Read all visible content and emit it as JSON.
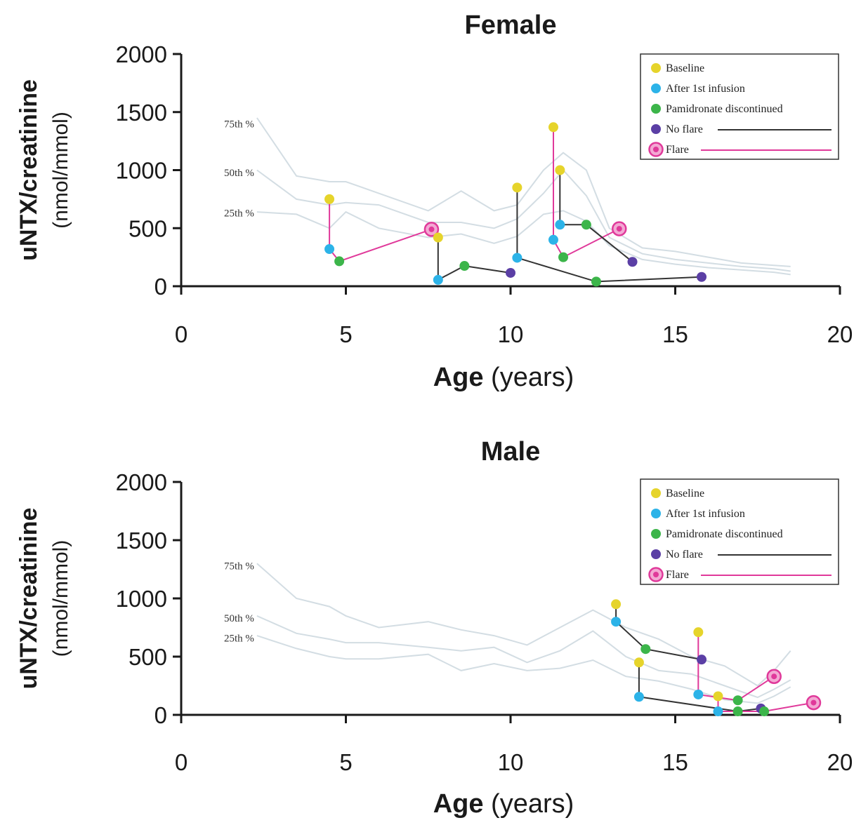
{
  "colors": {
    "baseline": "#e6d42b",
    "after_infusion": "#2cb3e8",
    "discontinued": "#3cb54a",
    "no_flare": "#5b3fa5",
    "flare": "#e0399a",
    "no_flare_line": "#333333",
    "flare_line": "#e0399a",
    "percentile": "#d3dde3",
    "axis": "#1a1a1a"
  },
  "chart_data": [
    {
      "type": "line",
      "title": "Female",
      "ylabel_bold": "uNTX/creatinine",
      "ylabel_units": "(nmol/mmol)",
      "xlabel_bold": "Age",
      "xlabel_units": "(years)",
      "xlim": [
        0,
        20
      ],
      "ylim": [
        0,
        2000
      ],
      "xticks": [
        "0",
        "5",
        "10",
        "15",
        "20"
      ],
      "yticks": [
        "0",
        "500",
        "1000",
        "1500",
        "2000"
      ],
      "legend_position": "top-right",
      "legend": [
        "Baseline",
        "After 1st infusion",
        "Pamidronate discontinued",
        "No flare",
        "Flare"
      ],
      "percentile_labels": [
        {
          "text": "75th %",
          "age": 2.3,
          "value": 1400
        },
        {
          "text": "50th %",
          "age": 2.3,
          "value": 980
        },
        {
          "text": "25th %",
          "age": 2.3,
          "value": 630
        }
      ],
      "percentiles": [
        {
          "name": "75th %",
          "x": [
            2.3,
            3.5,
            4.5,
            5.0,
            6.0,
            7.5,
            8.5,
            9.5,
            10.2,
            11.0,
            11.6,
            12.3,
            13.0,
            14.0,
            15.0,
            16.0,
            17.0,
            18.0,
            18.5
          ],
          "y": [
            1450,
            950,
            900,
            900,
            800,
            650,
            820,
            650,
            700,
            1000,
            1150,
            1000,
            500,
            330,
            300,
            250,
            200,
            180,
            170
          ]
        },
        {
          "name": "50th %",
          "x": [
            2.3,
            3.5,
            4.5,
            5.0,
            6.0,
            7.5,
            8.5,
            9.5,
            10.2,
            11.0,
            11.6,
            12.3,
            13.0,
            14.0,
            15.0,
            16.0,
            17.0,
            18.0,
            18.5
          ],
          "y": [
            1000,
            750,
            700,
            720,
            700,
            550,
            550,
            500,
            580,
            800,
            1000,
            780,
            420,
            280,
            230,
            200,
            170,
            150,
            130
          ]
        },
        {
          "name": "25th %",
          "x": [
            2.3,
            3.5,
            4.5,
            5.0,
            6.0,
            7.5,
            8.5,
            9.5,
            10.2,
            11.0,
            11.6,
            12.3,
            13.0,
            14.0,
            15.0,
            16.0,
            17.0,
            18.0,
            18.5
          ],
          "y": [
            640,
            620,
            500,
            640,
            500,
            420,
            450,
            370,
            430,
            620,
            650,
            560,
            350,
            230,
            190,
            160,
            140,
            120,
            100
          ]
        }
      ],
      "series": [
        {
          "flare": true,
          "x": [
            4.5,
            4.5,
            4.8,
            7.6
          ],
          "y": [
            750,
            320,
            215,
            490
          ],
          "kinds": [
            "baseline",
            "after",
            "discontinued",
            "flare"
          ]
        },
        {
          "flare": false,
          "x": [
            7.8,
            7.8,
            8.6,
            10.0
          ],
          "y": [
            420,
            55,
            175,
            115
          ],
          "kinds": [
            "baseline",
            "after",
            "discontinued",
            "noflare"
          ]
        },
        {
          "flare": false,
          "x": [
            10.2,
            10.2,
            12.6,
            15.8
          ],
          "y": [
            850,
            245,
            40,
            80
          ],
          "kinds": [
            "baseline",
            "after",
            "discontinued",
            "noflare"
          ]
        },
        {
          "flare": true,
          "x": [
            11.3,
            11.3,
            11.6,
            13.3
          ],
          "y": [
            1370,
            400,
            250,
            495
          ],
          "kinds": [
            "baseline",
            "after",
            "discontinued",
            "flare"
          ]
        },
        {
          "flare": false,
          "x": [
            11.5,
            11.5,
            12.3,
            13.7
          ],
          "y": [
            1000,
            530,
            530,
            210
          ],
          "kinds": [
            "baseline",
            "after",
            "discontinued",
            "noflare"
          ]
        }
      ]
    },
    {
      "type": "line",
      "title": "Male",
      "ylabel_bold": "uNTX/creatinine",
      "ylabel_units": "(nmol/mmol)",
      "xlabel_bold": "Age",
      "xlabel_units": "(years)",
      "xlim": [
        0,
        20
      ],
      "ylim": [
        0,
        2000
      ],
      "xticks": [
        "0",
        "5",
        "10",
        "15",
        "20"
      ],
      "yticks": [
        "0",
        "500",
        "1000",
        "1500",
        "2000"
      ],
      "legend_position": "top-right",
      "legend": [
        "Baseline",
        "After 1st infusion",
        "Pamidronate discontinued",
        "No flare",
        "Flare"
      ],
      "percentile_labels": [
        {
          "text": "75th %",
          "age": 2.3,
          "value": 1280
        },
        {
          "text": "50th %",
          "age": 2.3,
          "value": 830
        },
        {
          "text": "25th %",
          "age": 2.3,
          "value": 660
        }
      ],
      "percentiles": [
        {
          "name": "75th %",
          "x": [
            2.3,
            3.5,
            4.5,
            5.0,
            6.0,
            7.5,
            8.5,
            9.5,
            10.5,
            11.5,
            12.5,
            13.5,
            14.5,
            15.5,
            16.5,
            17.5,
            18.0,
            18.5
          ],
          "y": [
            1300,
            1000,
            930,
            850,
            750,
            800,
            730,
            680,
            600,
            750,
            900,
            750,
            650,
            500,
            420,
            250,
            380,
            550
          ]
        },
        {
          "name": "50th %",
          "x": [
            2.3,
            3.5,
            4.5,
            5.0,
            6.0,
            7.5,
            8.5,
            9.5,
            10.5,
            11.5,
            12.5,
            13.5,
            14.5,
            15.5,
            16.5,
            17.5,
            18.0,
            18.5
          ],
          "y": [
            850,
            700,
            650,
            620,
            620,
            580,
            550,
            580,
            450,
            550,
            720,
            500,
            380,
            350,
            250,
            150,
            220,
            300
          ]
        },
        {
          "name": "25th %",
          "x": [
            2.3,
            3.5,
            4.5,
            5.0,
            6.0,
            7.5,
            8.5,
            9.5,
            10.5,
            11.5,
            12.5,
            13.5,
            14.5,
            15.5,
            16.5,
            17.5,
            18.0,
            18.5
          ],
          "y": [
            680,
            570,
            500,
            480,
            480,
            520,
            380,
            440,
            380,
            400,
            470,
            330,
            290,
            220,
            130,
            100,
            160,
            240
          ]
        }
      ],
      "series": [
        {
          "flare": false,
          "x": [
            13.2,
            13.2,
            14.1,
            15.8
          ],
          "y": [
            950,
            800,
            565,
            475
          ],
          "kinds": [
            "baseline",
            "after",
            "discontinued",
            "noflare"
          ]
        },
        {
          "flare": false,
          "x": [
            13.9,
            13.9,
            16.9,
            17.6
          ],
          "y": [
            450,
            155,
            30,
            55
          ],
          "kinds": [
            "baseline",
            "after",
            "discontinued",
            "noflare"
          ]
        },
        {
          "flare": true,
          "x": [
            15.7,
            15.7,
            16.9,
            18.0
          ],
          "y": [
            710,
            175,
            125,
            330
          ],
          "kinds": [
            "baseline",
            "after",
            "discontinued",
            "flare"
          ]
        },
        {
          "flare": true,
          "x": [
            16.3,
            16.3,
            17.7,
            19.2
          ],
          "y": [
            160,
            30,
            30,
            105
          ],
          "kinds": [
            "baseline",
            "after",
            "discontinued",
            "flare"
          ]
        }
      ]
    }
  ]
}
